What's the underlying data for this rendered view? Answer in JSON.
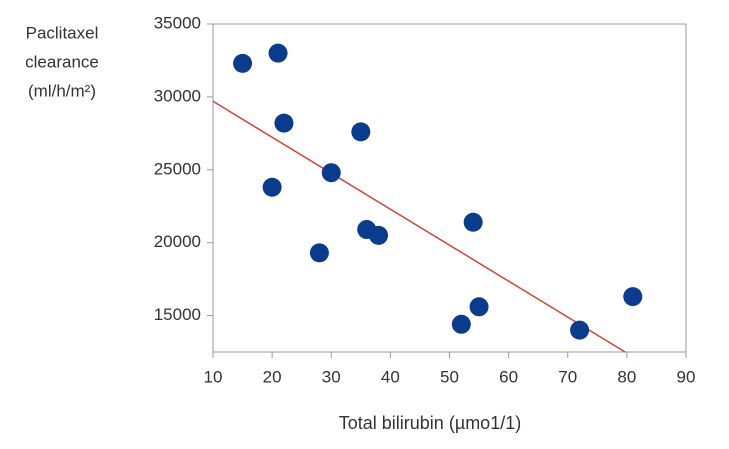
{
  "chart_data": {
    "type": "scatter",
    "ylabel": [
      "Paclitaxel",
      "clearance",
      "(ml/h/m²)"
    ],
    "xlabel": "Total bilirubin (µmo1/1)",
    "x": [
      15,
      21,
      22,
      20,
      30,
      35,
      28,
      36,
      38,
      54,
      52,
      55,
      72,
      81
    ],
    "values": [
      32300,
      33000,
      28200,
      23800,
      24800,
      27600,
      19300,
      20900,
      20500,
      21400,
      14400,
      15600,
      14000,
      16300
    ],
    "color": "#0b3b8c",
    "trend_line": {
      "x": [
        10,
        79.7
      ],
      "y": [
        29700,
        12500
      ],
      "color": "#d0453a"
    },
    "xlim": [
      10,
      90
    ],
    "xticks": [
      10,
      20,
      30,
      40,
      50,
      60,
      70,
      80,
      90
    ],
    "ylim": [
      12500,
      35000
    ],
    "yticks": [
      15000,
      20000,
      25000,
      30000,
      35000
    ]
  }
}
